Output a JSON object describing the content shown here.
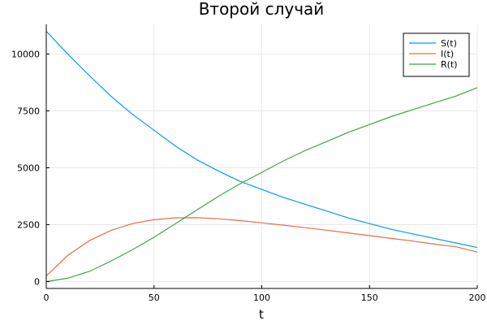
{
  "chart_data": {
    "type": "line",
    "title": "Второй случай",
    "xlabel": "t",
    "ylabel": "",
    "xlim": [
      0,
      200
    ],
    "ylim": [
      -300,
      11300
    ],
    "xticks": [
      0,
      50,
      100,
      150,
      200
    ],
    "xtick_labels": [
      "0",
      "50",
      "100",
      "150",
      "200"
    ],
    "yticks": [
      0,
      2500,
      5000,
      7500,
      10000
    ],
    "ytick_labels": [
      "0",
      "2500",
      "5000",
      "7500",
      "10000"
    ],
    "grid": true,
    "legend_position": "top-right",
    "x": [
      0,
      10,
      20,
      30,
      40,
      50,
      60,
      70,
      80,
      90,
      100,
      110,
      120,
      130,
      140,
      150,
      160,
      170,
      180,
      190,
      200
    ],
    "series": [
      {
        "name": "S(t)",
        "color": "#009af9",
        "values": [
          11000,
          10000,
          9050,
          8150,
          7350,
          6650,
          5950,
          5350,
          4850,
          4400,
          4050,
          3700,
          3400,
          3100,
          2800,
          2550,
          2300,
          2100,
          1900,
          1700,
          1500
        ]
      },
      {
        "name": "I(t)",
        "color": "#e26f46",
        "values": [
          250,
          1150,
          1800,
          2250,
          2550,
          2720,
          2800,
          2810,
          2760,
          2680,
          2580,
          2480,
          2370,
          2260,
          2140,
          2020,
          1900,
          1780,
          1650,
          1530,
          1300
        ]
      },
      {
        "name": "R(t)",
        "color": "#3da44d",
        "values": [
          0,
          150,
          450,
          900,
          1400,
          1950,
          2550,
          3150,
          3750,
          4300,
          4800,
          5300,
          5750,
          6150,
          6550,
          6900,
          7250,
          7550,
          7850,
          8150,
          8520
        ]
      }
    ]
  }
}
